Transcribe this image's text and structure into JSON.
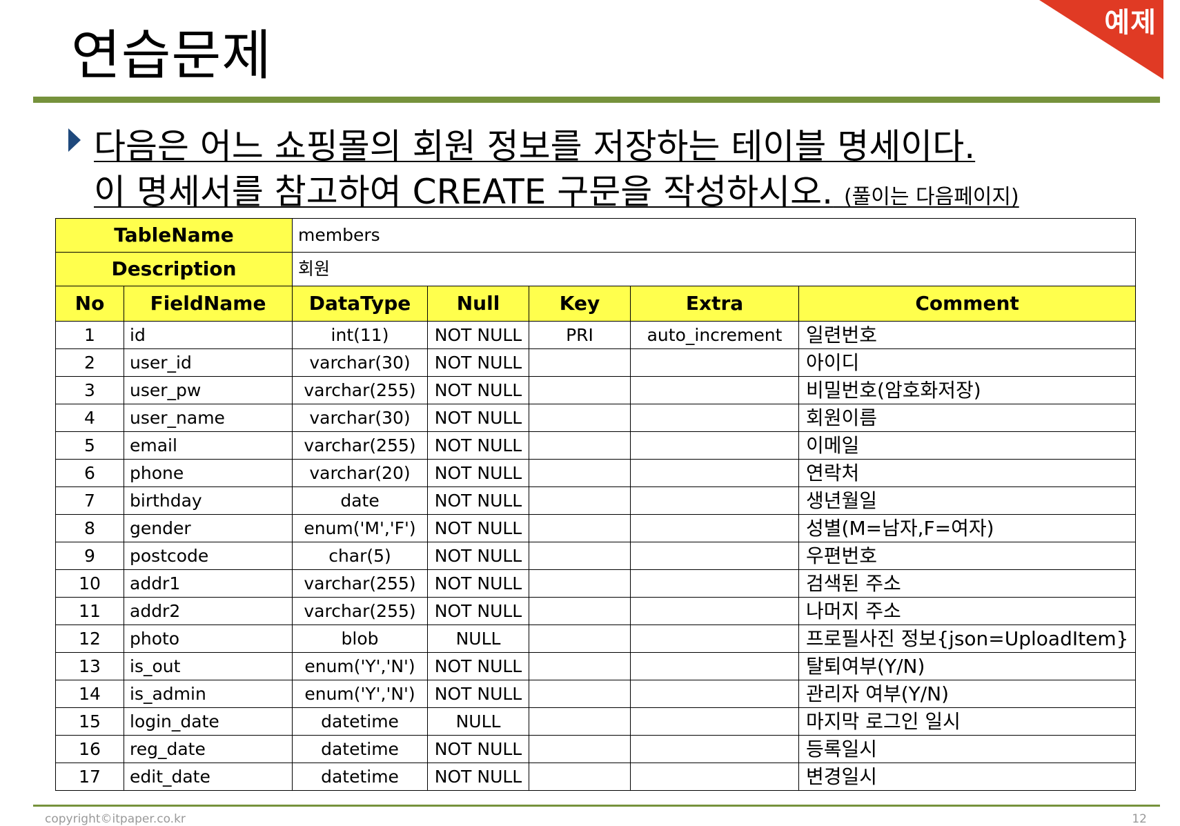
{
  "slide": {
    "title": "연습문제",
    "badge": "예제",
    "instruction_line1": "다음은 어느 쇼핑몰의 회원 정보를 저장하는 테이블 명세이다.",
    "instruction_line2": "이 명세서를 참고하여 CREATE 구문을 작성하시오.",
    "instruction_note": "(풀이는 다음페이지)",
    "footer_copyright": "copyright©itpaper.co.kr",
    "page_number": "12"
  },
  "colors": {
    "accent_green": "#76923c",
    "badge_red": "#e03a24",
    "header_yellow": "#ffff4d"
  },
  "table": {
    "tablename_label": "TableName",
    "tablename_value": "members",
    "description_label": "Description",
    "description_value": "회원",
    "headers": [
      "No",
      "FieldName",
      "DataType",
      "Null",
      "Key",
      "Extra",
      "Comment"
    ],
    "rows": [
      [
        "1",
        "id",
        "int(11)",
        "NOT NULL",
        "PRI",
        "auto_increment",
        "일련번호"
      ],
      [
        "2",
        "user_id",
        "varchar(30)",
        "NOT NULL",
        "",
        "",
        "아이디"
      ],
      [
        "3",
        "user_pw",
        "varchar(255)",
        "NOT NULL",
        "",
        "",
        "비밀번호(암호화저장)"
      ],
      [
        "4",
        "user_name",
        "varchar(30)",
        "NOT NULL",
        "",
        "",
        "회원이름"
      ],
      [
        "5",
        "email",
        "varchar(255)",
        "NOT NULL",
        "",
        "",
        "이메일"
      ],
      [
        "6",
        "phone",
        "varchar(20)",
        "NOT NULL",
        "",
        "",
        "연락처"
      ],
      [
        "7",
        "birthday",
        "date",
        "NOT NULL",
        "",
        "",
        "생년월일"
      ],
      [
        "8",
        "gender",
        "enum('M','F')",
        "NOT NULL",
        "",
        "",
        "성별(M=남자,F=여자)"
      ],
      [
        "9",
        "postcode",
        "char(5)",
        "NOT NULL",
        "",
        "",
        "우편번호"
      ],
      [
        "10",
        "addr1",
        "varchar(255)",
        "NOT NULL",
        "",
        "",
        "검색된 주소"
      ],
      [
        "11",
        "addr2",
        "varchar(255)",
        "NOT NULL",
        "",
        "",
        "나머지 주소"
      ],
      [
        "12",
        "photo",
        "blob",
        "NULL",
        "",
        "",
        "프로필사진 정보{json=UploadItem}"
      ],
      [
        "13",
        "is_out",
        "enum('Y','N')",
        "NOT NULL",
        "",
        "",
        "탈퇴여부(Y/N)"
      ],
      [
        "14",
        "is_admin",
        "enum('Y','N')",
        "NOT NULL",
        "",
        "",
        "관리자 여부(Y/N)"
      ],
      [
        "15",
        "login_date",
        "datetime",
        "NULL",
        "",
        "",
        "마지막 로그인 일시"
      ],
      [
        "16",
        "reg_date",
        "datetime",
        "NOT NULL",
        "",
        "",
        "등록일시"
      ],
      [
        "17",
        "edit_date",
        "datetime",
        "NOT NULL",
        "",
        "",
        "변경일시"
      ]
    ]
  }
}
